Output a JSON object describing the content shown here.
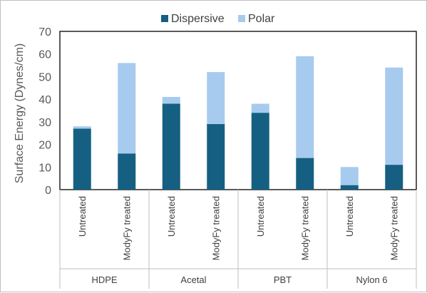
{
  "chart_data": {
    "type": "bar",
    "stacked": true,
    "ylabel": "Surface Energy (Dynes/cm)",
    "ylim": [
      0,
      70
    ],
    "yticks": [
      0,
      10,
      20,
      30,
      40,
      50,
      60,
      70
    ],
    "grid": false,
    "legend_position": "top",
    "categories": [
      {
        "group": "HDPE",
        "label": "Untreated"
      },
      {
        "group": "HDPE",
        "label": "ModyFy treated"
      },
      {
        "group": "Acetal",
        "label": "Untreated"
      },
      {
        "group": "Acetal",
        "label": "ModyFy treated"
      },
      {
        "group": "PBT",
        "label": "Untreated"
      },
      {
        "group": "PBT",
        "label": "ModyFy treated"
      },
      {
        "group": "Nylon 6",
        "label": "Untreated"
      },
      {
        "group": "Nylon 6",
        "label": "ModyFy treated"
      }
    ],
    "groups": [
      "HDPE",
      "Acetal",
      "PBT",
      "Nylon 6"
    ],
    "series": [
      {
        "name": "Dispersive",
        "color": "#156082",
        "values": [
          27,
          16,
          38,
          29,
          34,
          14,
          2,
          11
        ]
      },
      {
        "name": "Polar",
        "color": "#a7cbee",
        "values": [
          1,
          40,
          3,
          23,
          4,
          45,
          8,
          43
        ]
      }
    ]
  }
}
